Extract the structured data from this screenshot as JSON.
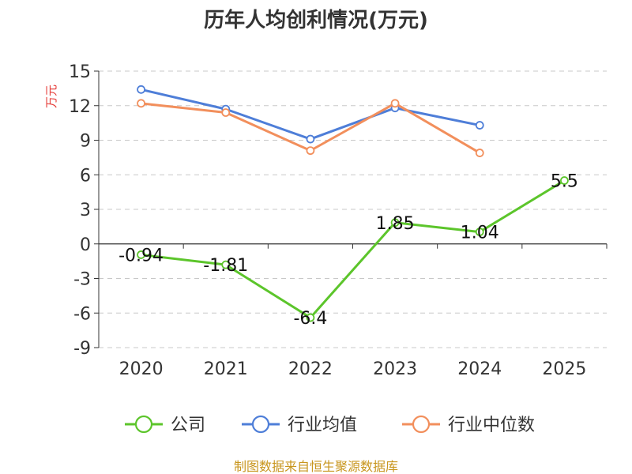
{
  "chart_data": {
    "type": "line",
    "title": "历年人均创利情况(万元)",
    "ylabel": "万元",
    "x": [
      "2020",
      "2021",
      "2022",
      "2023",
      "2024",
      "2025"
    ],
    "ylim": [
      -9,
      15
    ],
    "yticks": [
      15,
      12,
      9,
      6,
      3,
      0,
      -3,
      -6,
      -9
    ],
    "grid": true,
    "legend_position": "bottom",
    "series": [
      {
        "name": "公司",
        "color": "#5cc52b",
        "values": [
          -0.94,
          -1.81,
          -6.4,
          1.85,
          1.04,
          5.5
        ],
        "labels": [
          "-0.94",
          "-1.81",
          "-6.4",
          "1.85",
          "1.04",
          "5.5"
        ]
      },
      {
        "name": "行业均值",
        "color": "#4e7ed8",
        "values": [
          13.4,
          11.7,
          9.1,
          11.8,
          10.3,
          null
        ]
      },
      {
        "name": "行业中位数",
        "color": "#f28f5c",
        "values": [
          12.2,
          11.4,
          8.1,
          12.2,
          7.9,
          null
        ]
      }
    ]
  },
  "footer": {
    "source": "制图数据来自恒生聚源数据库"
  }
}
